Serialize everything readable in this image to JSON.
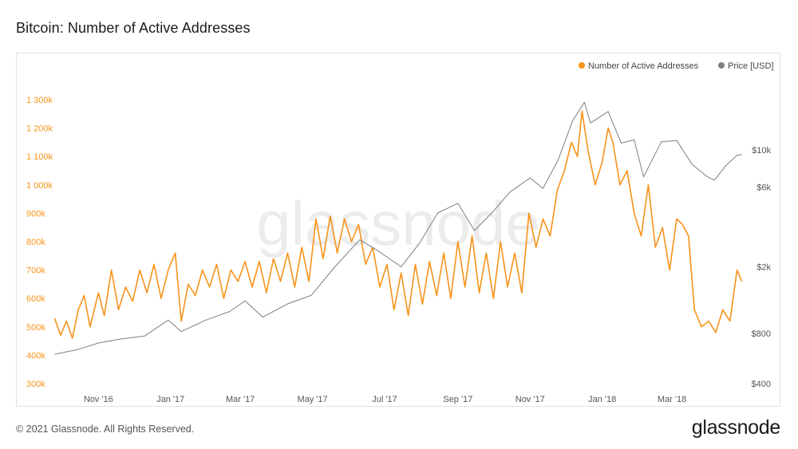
{
  "title": "Bitcoin: Number of Active Addresses",
  "footer": {
    "copyright": "© 2021 Glassnode. All Rights Reserved.",
    "brand": "glassnode"
  },
  "watermark": "glassnode",
  "colors": {
    "addresses": "#f7931a",
    "price": "#7f7f7f",
    "axis_left": "#f7931a",
    "axis_right": "#555555",
    "watermark": "#ececec"
  },
  "chart_data": {
    "type": "line",
    "title": "Bitcoin: Number of Active Addresses",
    "x_range": [
      "2016-09-24",
      "2018-04-30"
    ],
    "x_ticks": [
      {
        "date": "2016-11-01",
        "label": "Nov '16"
      },
      {
        "date": "2017-01-01",
        "label": "Jan '17"
      },
      {
        "date": "2017-03-01",
        "label": "Mar '17"
      },
      {
        "date": "2017-05-01",
        "label": "May '17"
      },
      {
        "date": "2017-07-01",
        "label": "Jul '17"
      },
      {
        "date": "2017-09-01",
        "label": "Sep '17"
      },
      {
        "date": "2017-11-01",
        "label": "Nov '17"
      },
      {
        "date": "2018-01-01",
        "label": "Jan '18"
      },
      {
        "date": "2018-03-01",
        "label": "Mar '18"
      }
    ],
    "y_left": {
      "scale": "linear",
      "range": [
        300000,
        1300000
      ],
      "ticks": [
        {
          "value": 300000,
          "label": "300k"
        },
        {
          "value": 400000,
          "label": "400k"
        },
        {
          "value": 500000,
          "label": "500k"
        },
        {
          "value": 600000,
          "label": "600k"
        },
        {
          "value": 700000,
          "label": "700k"
        },
        {
          "value": 800000,
          "label": "800k"
        },
        {
          "value": 900000,
          "label": "900k"
        },
        {
          "value": 1000000,
          "label": "1 000k"
        },
        {
          "value": 1100000,
          "label": "1 100k"
        },
        {
          "value": 1200000,
          "label": "1 200k"
        },
        {
          "value": 1300000,
          "label": "1 300k"
        }
      ]
    },
    "y_right": {
      "scale": "log",
      "range": [
        400,
        20000
      ],
      "ticks": [
        {
          "value": 400,
          "label": "$400"
        },
        {
          "value": 800,
          "label": "$800"
        },
        {
          "value": 2000,
          "label": "$2k"
        },
        {
          "value": 6000,
          "label": "$6k"
        },
        {
          "value": 10000,
          "label": "$10k"
        }
      ]
    },
    "legend": {
      "position": "top-right",
      "items": [
        "Number of Active Addresses",
        "Price [USD]"
      ]
    },
    "grid": false,
    "series": [
      {
        "name": "Number of Active Addresses",
        "axis": "left",
        "points": [
          [
            "2016-09-25",
            530000
          ],
          [
            "2016-09-30",
            470000
          ],
          [
            "2016-10-05",
            520000
          ],
          [
            "2016-10-10",
            460000
          ],
          [
            "2016-10-15",
            560000
          ],
          [
            "2016-10-20",
            610000
          ],
          [
            "2016-10-25",
            500000
          ],
          [
            "2016-11-01",
            620000
          ],
          [
            "2016-11-06",
            540000
          ],
          [
            "2016-11-12",
            700000
          ],
          [
            "2016-11-18",
            560000
          ],
          [
            "2016-11-24",
            640000
          ],
          [
            "2016-11-30",
            590000
          ],
          [
            "2016-12-06",
            700000
          ],
          [
            "2016-12-12",
            620000
          ],
          [
            "2016-12-18",
            720000
          ],
          [
            "2016-12-24",
            600000
          ],
          [
            "2016-12-30",
            700000
          ],
          [
            "2017-01-05",
            760000
          ],
          [
            "2017-01-10",
            520000
          ],
          [
            "2017-01-16",
            650000
          ],
          [
            "2017-01-22",
            610000
          ],
          [
            "2017-01-28",
            700000
          ],
          [
            "2017-02-03",
            640000
          ],
          [
            "2017-02-09",
            720000
          ],
          [
            "2017-02-15",
            600000
          ],
          [
            "2017-02-21",
            700000
          ],
          [
            "2017-02-27",
            660000
          ],
          [
            "2017-03-05",
            730000
          ],
          [
            "2017-03-11",
            640000
          ],
          [
            "2017-03-17",
            730000
          ],
          [
            "2017-03-23",
            620000
          ],
          [
            "2017-03-29",
            740000
          ],
          [
            "2017-04-04",
            660000
          ],
          [
            "2017-04-10",
            760000
          ],
          [
            "2017-04-16",
            640000
          ],
          [
            "2017-04-22",
            780000
          ],
          [
            "2017-04-28",
            660000
          ],
          [
            "2017-05-04",
            880000
          ],
          [
            "2017-05-10",
            740000
          ],
          [
            "2017-05-16",
            890000
          ],
          [
            "2017-05-22",
            760000
          ],
          [
            "2017-05-28",
            880000
          ],
          [
            "2017-06-03",
            800000
          ],
          [
            "2017-06-09",
            860000
          ],
          [
            "2017-06-15",
            720000
          ],
          [
            "2017-06-21",
            780000
          ],
          [
            "2017-06-27",
            640000
          ],
          [
            "2017-07-03",
            720000
          ],
          [
            "2017-07-09",
            560000
          ],
          [
            "2017-07-15",
            690000
          ],
          [
            "2017-07-21",
            540000
          ],
          [
            "2017-07-27",
            720000
          ],
          [
            "2017-08-02",
            580000
          ],
          [
            "2017-08-08",
            730000
          ],
          [
            "2017-08-14",
            610000
          ],
          [
            "2017-08-20",
            760000
          ],
          [
            "2017-08-26",
            600000
          ],
          [
            "2017-09-01",
            800000
          ],
          [
            "2017-09-07",
            640000
          ],
          [
            "2017-09-13",
            820000
          ],
          [
            "2017-09-19",
            620000
          ],
          [
            "2017-09-25",
            760000
          ],
          [
            "2017-10-01",
            600000
          ],
          [
            "2017-10-07",
            800000
          ],
          [
            "2017-10-13",
            640000
          ],
          [
            "2017-10-19",
            760000
          ],
          [
            "2017-10-25",
            620000
          ],
          [
            "2017-10-31",
            900000
          ],
          [
            "2017-11-06",
            780000
          ],
          [
            "2017-11-12",
            880000
          ],
          [
            "2017-11-18",
            820000
          ],
          [
            "2017-11-24",
            980000
          ],
          [
            "2017-11-30",
            1050000
          ],
          [
            "2017-12-06",
            1150000
          ],
          [
            "2017-12-11",
            1100000
          ],
          [
            "2017-12-15",
            1260000
          ],
          [
            "2017-12-20",
            1120000
          ],
          [
            "2017-12-26",
            1000000
          ],
          [
            "2018-01-01",
            1080000
          ],
          [
            "2018-01-06",
            1200000
          ],
          [
            "2018-01-10",
            1150000
          ],
          [
            "2018-01-16",
            1000000
          ],
          [
            "2018-01-22",
            1050000
          ],
          [
            "2018-01-28",
            900000
          ],
          [
            "2018-02-03",
            820000
          ],
          [
            "2018-02-09",
            1000000
          ],
          [
            "2018-02-15",
            780000
          ],
          [
            "2018-02-21",
            850000
          ],
          [
            "2018-02-27",
            700000
          ],
          [
            "2018-03-05",
            880000
          ],
          [
            "2018-03-10",
            860000
          ],
          [
            "2018-03-15",
            820000
          ],
          [
            "2018-03-20",
            560000
          ],
          [
            "2018-03-26",
            500000
          ],
          [
            "2018-04-01",
            520000
          ],
          [
            "2018-04-07",
            480000
          ],
          [
            "2018-04-13",
            560000
          ],
          [
            "2018-04-19",
            520000
          ],
          [
            "2018-04-25",
            700000
          ],
          [
            "2018-04-29",
            660000
          ]
        ]
      },
      {
        "name": "Price [USD]",
        "axis": "right",
        "points": [
          [
            "2016-09-25",
            600
          ],
          [
            "2016-10-15",
            640
          ],
          [
            "2016-11-01",
            700
          ],
          [
            "2016-11-20",
            740
          ],
          [
            "2016-12-10",
            770
          ],
          [
            "2016-12-30",
            960
          ],
          [
            "2017-01-10",
            820
          ],
          [
            "2017-01-31",
            960
          ],
          [
            "2017-02-20",
            1080
          ],
          [
            "2017-03-05",
            1250
          ],
          [
            "2017-03-20",
            1000
          ],
          [
            "2017-04-10",
            1200
          ],
          [
            "2017-04-30",
            1350
          ],
          [
            "2017-05-20",
            2000
          ],
          [
            "2017-06-10",
            2900
          ],
          [
            "2017-06-25",
            2500
          ],
          [
            "2017-07-15",
            2000
          ],
          [
            "2017-07-31",
            2800
          ],
          [
            "2017-08-15",
            4200
          ],
          [
            "2017-09-01",
            4800
          ],
          [
            "2017-09-15",
            3300
          ],
          [
            "2017-10-01",
            4300
          ],
          [
            "2017-10-15",
            5600
          ],
          [
            "2017-11-01",
            6800
          ],
          [
            "2017-11-12",
            5900
          ],
          [
            "2017-11-25",
            8800
          ],
          [
            "2017-12-07",
            15000
          ],
          [
            "2017-12-17",
            19300
          ],
          [
            "2017-12-22",
            14500
          ],
          [
            "2018-01-06",
            17000
          ],
          [
            "2018-01-17",
            11000
          ],
          [
            "2018-01-28",
            11500
          ],
          [
            "2018-02-05",
            6900
          ],
          [
            "2018-02-20",
            11200
          ],
          [
            "2018-03-05",
            11400
          ],
          [
            "2018-03-18",
            8200
          ],
          [
            "2018-03-31",
            6900
          ],
          [
            "2018-04-06",
            6600
          ],
          [
            "2018-04-15",
            8000
          ],
          [
            "2018-04-25",
            9300
          ],
          [
            "2018-04-29",
            9400
          ]
        ]
      }
    ]
  }
}
